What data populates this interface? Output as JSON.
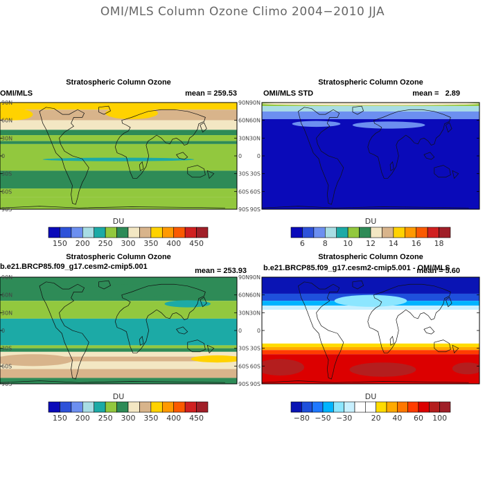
{
  "figure_title": "OMI/MLS Column Ozone Climo 2004−2010 JJA",
  "chart_data": [
    {
      "type": "heatmap",
      "title": "Stratospheric Column Ozone",
      "left_label": "OMI/MLS",
      "right_label": "mean = 259.53",
      "y_tick_labels": [
        "90N",
        "60N",
        "30N",
        "0",
        "30S",
        "60S",
        "90S"
      ],
      "y_ticks": [
        90,
        60,
        30,
        0,
        -30,
        -60,
        -90
      ],
      "colorbar_label": "DU",
      "colorbar_levels": [
        125,
        150,
        175,
        200,
        225,
        250,
        275,
        300,
        325,
        350,
        375,
        400,
        425,
        450,
        475
      ],
      "colorbar_tick_labels": [
        "150",
        "200",
        "250",
        "300",
        "350",
        "400",
        "450"
      ],
      "colorbar_tick_values": [
        150,
        200,
        250,
        300,
        350,
        400,
        450
      ],
      "bands": [
        {
          "lat_top": 90,
          "lat_bottom": 78,
          "value": 360
        },
        {
          "lat_top": 78,
          "lat_bottom": 60,
          "value": 330
        },
        {
          "lat_top": 60,
          "lat_bottom": 44,
          "value": 310
        },
        {
          "lat_top": 44,
          "lat_bottom": 35,
          "value": 280
        },
        {
          "lat_top": 35,
          "lat_bottom": 25,
          "value": 270
        },
        {
          "lat_top": 25,
          "lat_bottom": 20,
          "value": 285
        },
        {
          "lat_top": 20,
          "lat_bottom": -25,
          "value": 255
        },
        {
          "lat_top": -25,
          "lat_bottom": -55,
          "value": 280
        },
        {
          "lat_top": -55,
          "lat_bottom": -70,
          "value": 265
        },
        {
          "lat_top": -70,
          "lat_bottom": -90,
          "value": 255
        }
      ],
      "blobs": [
        {
          "lon": 0,
          "lat": -6,
          "rlon": 115,
          "rlat": 3,
          "value": 235
        },
        {
          "lon": 20,
          "lat": 72,
          "rlon": 40,
          "rlat": 10,
          "value": 360
        },
        {
          "lon": -160,
          "lat": 70,
          "rlon": 30,
          "rlat": 10,
          "value": 360
        }
      ]
    },
    {
      "type": "heatmap",
      "title": "Stratospheric Column Ozone",
      "left_label": "OMI/MLS STD",
      "right_label": "mean =   2.89",
      "y_tick_labels": [
        "90N",
        "60N",
        "30N",
        "0",
        "30S",
        "60S",
        "90S"
      ],
      "y_ticks": [
        90,
        60,
        30,
        0,
        -30,
        -60,
        -90
      ],
      "colorbar_label": "DU",
      "colorbar_levels": [
        5,
        6,
        7,
        8,
        9,
        10,
        11,
        12,
        13,
        14,
        15,
        16,
        17,
        18,
        19
      ],
      "colorbar_tick_labels": [
        "6",
        "8",
        "10",
        "12",
        "14",
        "16",
        "18"
      ],
      "colorbar_tick_values": [
        6,
        8,
        10,
        12,
        14,
        16,
        18
      ],
      "bands": [
        {
          "lat_top": 90,
          "lat_bottom": 84,
          "value": 10.5
        },
        {
          "lat_top": 84,
          "lat_bottom": 75,
          "value": 8.5
        },
        {
          "lat_top": 75,
          "lat_bottom": 62,
          "value": 7.5
        },
        {
          "lat_top": 62,
          "lat_bottom": -90,
          "value": 5.5
        }
      ],
      "blobs": [
        {
          "lon": 30,
          "lat": 52,
          "rlon": 60,
          "rlat": 6,
          "value": 7.5
        },
        {
          "lon": -90,
          "lat": 54,
          "rlon": 40,
          "rlat": 5,
          "value": 7.5
        },
        {
          "lon": 0,
          "lat": 88,
          "rlon": 180,
          "rlat": 3,
          "value": 12.5
        }
      ]
    },
    {
      "type": "heatmap",
      "title": "Stratospheric Column Ozone",
      "left_label": "b.e21.BRCP85.f09_g17.cesm2-cmip5.001",
      "right_label": "mean = 253.93",
      "y_tick_labels": [
        "90N",
        "60N",
        "30N",
        "0",
        "30S",
        "60S",
        "90S"
      ],
      "y_ticks": [
        90,
        60,
        30,
        0,
        -30,
        -60,
        -90
      ],
      "colorbar_label": "DU",
      "colorbar_levels": [
        125,
        150,
        175,
        200,
        225,
        250,
        275,
        300,
        325,
        350,
        375,
        400,
        425,
        450,
        475
      ],
      "colorbar_tick_labels": [
        "150",
        "200",
        "250",
        "300",
        "350",
        "400",
        "450"
      ],
      "colorbar_tick_values": [
        150,
        200,
        250,
        300,
        350,
        400,
        450
      ],
      "bands": [
        {
          "lat_top": 90,
          "lat_bottom": 50,
          "value": 280
        },
        {
          "lat_top": 50,
          "lat_bottom": 20,
          "value": 260
        },
        {
          "lat_top": 20,
          "lat_bottom": -25,
          "value": 235
        },
        {
          "lat_top": -25,
          "lat_bottom": -30,
          "value": 260
        },
        {
          "lat_top": -30,
          "lat_bottom": -36,
          "value": 280
        },
        {
          "lat_top": -36,
          "lat_bottom": -44,
          "value": 310
        },
        {
          "lat_top": -44,
          "lat_bottom": -52,
          "value": 330
        },
        {
          "lat_top": -52,
          "lat_bottom": -65,
          "value": 310
        },
        {
          "lat_top": -65,
          "lat_bottom": -80,
          "value": 330
        },
        {
          "lat_top": -80,
          "lat_bottom": -90,
          "value": 285
        }
      ],
      "blobs": [
        {
          "lon": 15,
          "lat": 66,
          "rlon": 60,
          "rlat": 12,
          "value": 285
        },
        {
          "lon": 105,
          "lat": 45,
          "rlon": 35,
          "rlat": 6,
          "value": 235
        },
        {
          "lon": -150,
          "lat": 30,
          "rlon": 25,
          "rlat": 6,
          "value": 260
        },
        {
          "lon": -130,
          "lat": -50,
          "rlon": 60,
          "rlat": 10,
          "value": 330
        },
        {
          "lon": 150,
          "lat": -48,
          "rlon": 40,
          "rlat": 6,
          "value": 360
        }
      ]
    },
    {
      "type": "heatmap",
      "title": "Stratospheric Column Ozone",
      "left_label": "b.e21.BRCP85.f09_g17.cesm2-cmip5.001 - OMI/MLS",
      "right_label": "mean = 5.60",
      "y_tick_labels": [
        "90N",
        "60N",
        "30N",
        "0",
        "30S",
        "60S",
        "90S"
      ],
      "y_ticks": [
        90,
        60,
        30,
        0,
        -30,
        -60,
        -90
      ],
      "colorbar_label": "DU",
      "colorbar_levels": [
        -100,
        -80,
        -60,
        -50,
        -40,
        -30,
        -20,
        0,
        20,
        30,
        40,
        50,
        60,
        80,
        100,
        120
      ],
      "colorbar_tick_labels": [
        "−80",
        "−50",
        "−30",
        "20",
        "40",
        "60",
        "100"
      ],
      "colorbar_tick_indices": [
        1,
        3,
        5,
        8,
        10,
        12,
        14
      ],
      "bands": [
        {
          "lat_top": 90,
          "lat_bottom": 62,
          "value": -90
        },
        {
          "lat_top": 62,
          "lat_bottom": 50,
          "value": -70
        },
        {
          "lat_top": 50,
          "lat_bottom": 42,
          "value": -45
        },
        {
          "lat_top": 42,
          "lat_bottom": 35,
          "value": -25
        },
        {
          "lat_top": 35,
          "lat_bottom": -22,
          "value": 5
        },
        {
          "lat_top": -22,
          "lat_bottom": -28,
          "value": 25
        },
        {
          "lat_top": -28,
          "lat_bottom": -33,
          "value": 35
        },
        {
          "lat_top": -33,
          "lat_bottom": -40,
          "value": 55
        },
        {
          "lat_top": -40,
          "lat_bottom": -90,
          "value": 70
        }
      ],
      "blobs": [
        {
          "lon": 0,
          "lat": 50,
          "rlon": 60,
          "rlat": 10,
          "value": -35
        },
        {
          "lon": -150,
          "lat": -62,
          "rlon": 40,
          "rlat": 14,
          "value": 90
        },
        {
          "lon": 20,
          "lat": -66,
          "rlon": 55,
          "rlat": 12,
          "value": 90
        },
        {
          "lon": 160,
          "lat": -64,
          "rlon": 25,
          "rlat": 10,
          "value": 90
        }
      ]
    }
  ],
  "colors": {
    "ozone_palette": [
      "#0a0ab9",
      "#2e52d9",
      "#6c8ff0",
      "#a8dde4",
      "#1caaa6",
      "#92c83e",
      "#2e8b57",
      "#f3e7c3",
      "#d8b48b",
      "#ffd200",
      "#ff9900",
      "#fa5a00",
      "#d02020",
      "#a01f28"
    ],
    "std_palette": [
      "#0a0ab9",
      "#2e52d9",
      "#6c8ff0",
      "#a8dde4",
      "#1caaa6",
      "#92c83e",
      "#2e8b57",
      "#f3e7c3",
      "#d8b48b",
      "#ffd200",
      "#ff9900",
      "#fa5a00",
      "#d02020",
      "#a01f28"
    ],
    "diff_palette": [
      "#0a14b4",
      "#1e50dc",
      "#1e78ff",
      "#00b4ff",
      "#8ce6ff",
      "#c8f0ff",
      "#ffffff",
      "#ffffff",
      "#ffdc00",
      "#ffaa00",
      "#ff7800",
      "#ff3c00",
      "#dc0000",
      "#b41e1e",
      "#a01f28"
    ]
  }
}
